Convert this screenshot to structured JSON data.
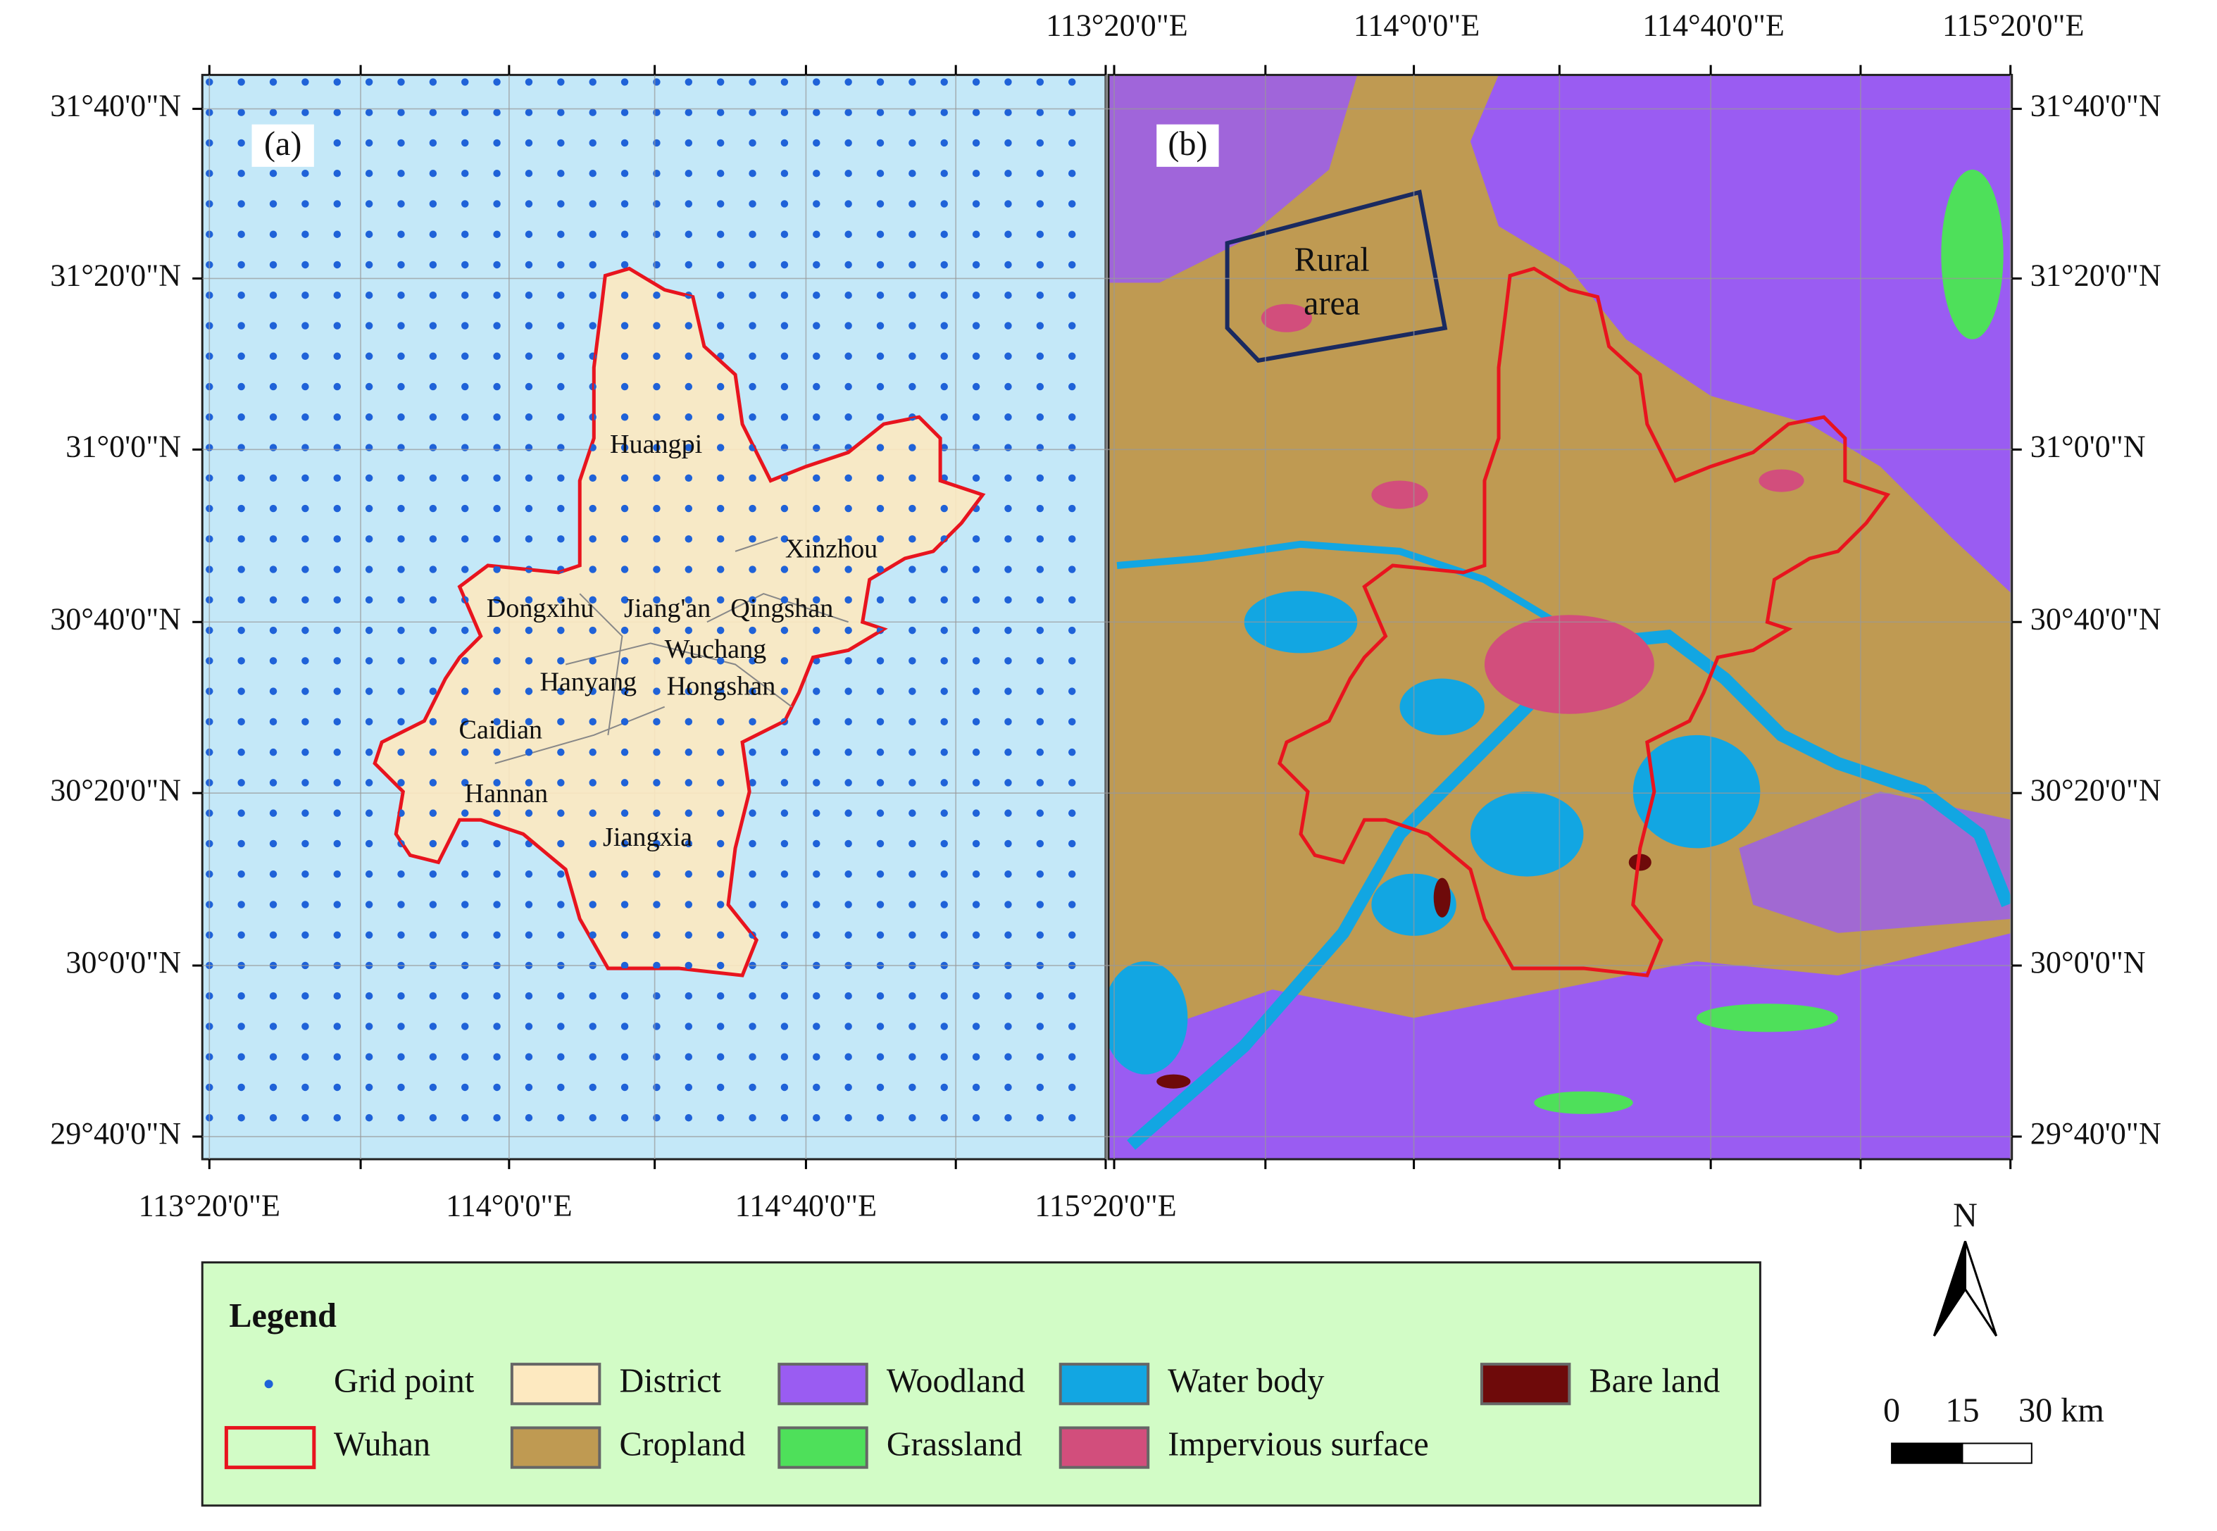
{
  "panel_a": {
    "label": "(a)",
    "districts": [
      "Huangpi",
      "Xinzhou",
      "Dongxihu",
      "Jiang'an",
      "Qingshan",
      "Wuchang",
      "Hanyang",
      "Hongshan",
      "Caidian",
      "Hannan",
      "Jiangxia"
    ]
  },
  "panel_b": {
    "label": "(b)",
    "rural_area": [
      "Rural",
      "area"
    ]
  },
  "axes": {
    "top_lon": [
      "113°20'0\"E",
      "114°0'0\"E",
      "114°40'0\"E",
      "115°20'0\"E"
    ],
    "bottom_lon": [
      "113°20'0\"E",
      "114°0'0\"E",
      "114°40'0\"E",
      "115°20'0\"E"
    ],
    "left_lat": [
      "31°40'0\"N",
      "31°20'0\"N",
      "31°0'0\"N",
      "30°40'0\"N",
      "30°20'0\"N",
      "30°0'0\"N",
      "29°40'0\"N"
    ],
    "right_lat": [
      "31°40'0\"N",
      "31°20'0\"N",
      "31°0'0\"N",
      "30°40'0\"N",
      "30°20'0\"N",
      "30°0'0\"N",
      "29°40'0\"N"
    ]
  },
  "legend": {
    "title": "Legend",
    "items": [
      {
        "label": "Grid point",
        "color": "#1f62d8"
      },
      {
        "label": "Wuhan",
        "color": "#e8141e"
      },
      {
        "label": "District",
        "color": "#fde9c0"
      },
      {
        "label": "Cropland",
        "color": "#bf9a52"
      },
      {
        "label": "Woodland",
        "color": "#9a5cf2"
      },
      {
        "label": "Grassland",
        "color": "#4ee05a"
      },
      {
        "label": "Water body",
        "color": "#12a6e2"
      },
      {
        "label": "Impervious surface",
        "color": "#d24e7c"
      },
      {
        "label": "Bare land",
        "color": "#6e0a0a"
      }
    ]
  },
  "scale_bar": {
    "labels": [
      "0",
      "15",
      "30 km"
    ]
  },
  "north": "N"
}
